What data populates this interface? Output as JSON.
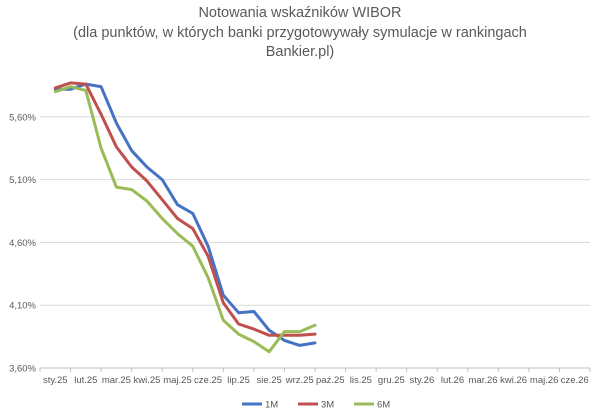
{
  "chart_data": {
    "type": "line",
    "title_lines": [
      "Notowania wskaźników WIBOR",
      "(dla punktów, w których banki przygotowywały symulacje w rankingach",
      "Bankier.pl)"
    ],
    "categories": [
      "sty.25",
      "lut.25",
      "mar.25",
      "kwi.25",
      "maj.25",
      "cze.25",
      "lip.25",
      "sie.25",
      "wrz.25",
      "paź.25",
      "lis.25",
      "gru.25",
      "sty.26",
      "lut.26",
      "mar.26",
      "kwi.26",
      "maj.26",
      "cze.26"
    ],
    "x_points": [
      0,
      0.5,
      1,
      1.5,
      2,
      2.5,
      3,
      3.5,
      4,
      4.5,
      5,
      5.5,
      6,
      6.5,
      7,
      7.5,
      8,
      8.5,
      9,
      9.5,
      10,
      10.5,
      11,
      11.5,
      12,
      12.5,
      13,
      13.5,
      14,
      14.5,
      15,
      15.5,
      16,
      16.5,
      17
    ],
    "y_ticks": [
      3.6,
      4.1,
      4.6,
      5.1,
      5.6
    ],
    "y_tick_labels": [
      "3,60%",
      "4,10%",
      "4,60%",
      "5,10%",
      "5,60%"
    ],
    "ylim": [
      3.6,
      6.1
    ],
    "grid": true,
    "legend_position": "bottom",
    "series": [
      {
        "name": "1M",
        "color": "#4472c4",
        "values": [
          5.82,
          5.82,
          5.86,
          5.84,
          5.55,
          5.33,
          5.2,
          5.1,
          4.9,
          4.83,
          4.57,
          4.18,
          4.04,
          4.05,
          3.9,
          3.82,
          3.78,
          3.8
        ]
      },
      {
        "name": "3M",
        "color": "#c0504d",
        "values": [
          5.83,
          5.87,
          5.86,
          5.62,
          5.36,
          5.2,
          5.09,
          4.94,
          4.79,
          4.71,
          4.49,
          4.12,
          3.95,
          3.91,
          3.86,
          3.86,
          3.86,
          3.87
        ]
      },
      {
        "name": "6M",
        "color": "#9bbb59",
        "values": [
          5.8,
          5.84,
          5.81,
          5.35,
          5.04,
          5.02,
          4.93,
          4.79,
          4.67,
          4.57,
          4.32,
          3.98,
          3.87,
          3.81,
          3.73,
          3.89,
          3.89,
          3.94
        ]
      }
    ]
  }
}
